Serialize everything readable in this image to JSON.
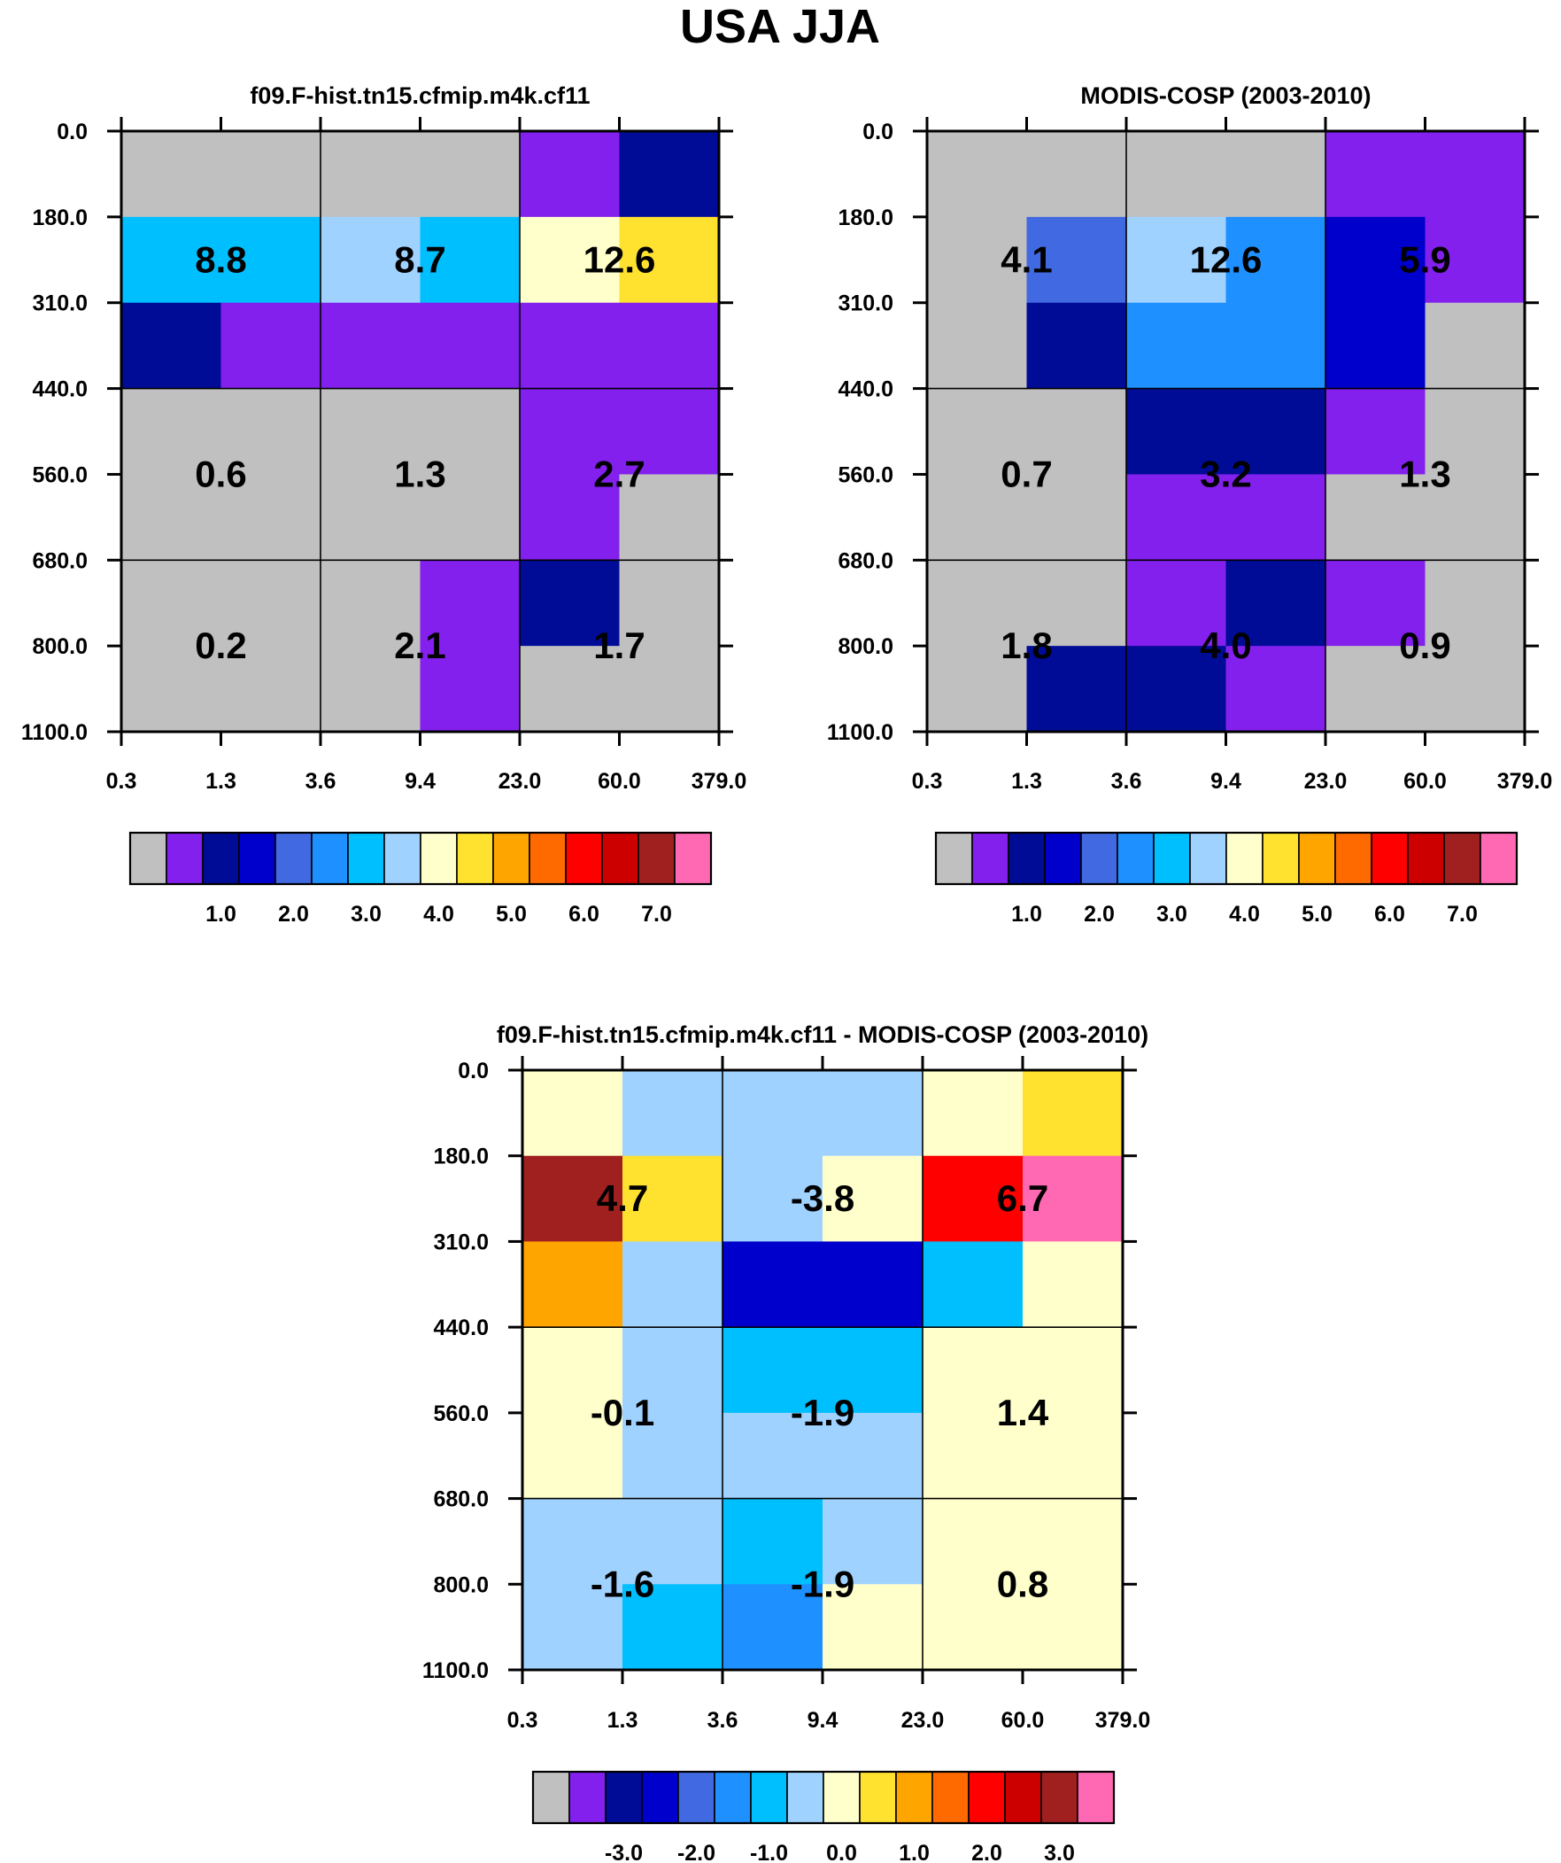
{
  "figure": {
    "title": "USA JJA"
  },
  "chart_data": [
    {
      "type": "heatmap",
      "title": "f09.F-hist.tn15.cfmip.m4k.cf11",
      "x_ticks": [
        "0.3",
        "1.3",
        "3.6",
        "9.4",
        "23.0",
        "60.0",
        "379.0"
      ],
      "y_ticks": [
        "0.0",
        "180.0",
        "310.0",
        "440.0",
        "560.0",
        "680.0",
        "800.0",
        "1100.0"
      ],
      "cells": [
        [
          "gray",
          "gray",
          "gray",
          "gray",
          "c01",
          "c02"
        ],
        [
          "c06",
          "c06",
          "c07",
          "c06",
          "c08",
          "c09"
        ],
        [
          "c02",
          "c01",
          "c01",
          "c01",
          "c01",
          "c01"
        ],
        [
          "gray",
          "gray",
          "gray",
          "gray",
          "c01",
          "c01"
        ],
        [
          "gray",
          "gray",
          "gray",
          "gray",
          "c01",
          "gray"
        ],
        [
          "gray",
          "gray",
          "gray",
          "c01",
          "c02",
          "gray"
        ],
        [
          "gray",
          "gray",
          "gray",
          "c01",
          "gray",
          "gray"
        ]
      ],
      "box_labels": [
        [
          "8.8",
          "8.7",
          "12.6"
        ],
        [
          "0.6",
          "1.3",
          "2.7"
        ],
        [
          "0.2",
          "2.1",
          "1.7"
        ]
      ],
      "colorbar": {
        "colors": [
          "#c0c0c0",
          "#8320ed",
          "#000c96",
          "#0000cd",
          "#4169e1",
          "#1e90ff",
          "#00bfff",
          "#a0d2ff",
          "#ffffcc",
          "#ffe130",
          "#ffa500",
          "#ff6a00",
          "#ff0000",
          "#cd0000",
          "#a02020",
          "#ff69b4"
        ],
        "tick_labels": [
          "1.0",
          "2.0",
          "3.0",
          "4.0",
          "5.0",
          "6.0",
          "7.0"
        ],
        "tick_boundaries": [
          2,
          4,
          6,
          8,
          10,
          12,
          14
        ]
      }
    },
    {
      "type": "heatmap",
      "title": "MODIS-COSP (2003-2010)",
      "x_ticks": [
        "0.3",
        "1.3",
        "3.6",
        "9.4",
        "23.0",
        "60.0",
        "379.0"
      ],
      "y_ticks": [
        "0.0",
        "180.0",
        "310.0",
        "440.0",
        "560.0",
        "680.0",
        "800.0",
        "1100.0"
      ],
      "cells": [
        [
          "gray",
          "gray",
          "gray",
          "gray",
          "c01",
          "c01"
        ],
        [
          "gray",
          "c04",
          "c07",
          "c05",
          "c03",
          "c01"
        ],
        [
          "gray",
          "c02",
          "c05",
          "c05",
          "c03",
          "gray"
        ],
        [
          "gray",
          "gray",
          "c02",
          "c02",
          "c01",
          "gray"
        ],
        [
          "gray",
          "gray",
          "c01",
          "c01",
          "gray",
          "gray"
        ],
        [
          "gray",
          "gray",
          "c01",
          "c02",
          "c01",
          "gray"
        ],
        [
          "gray",
          "c02",
          "c02",
          "c01",
          "gray",
          "gray"
        ]
      ],
      "box_labels": [
        [
          "4.1",
          "12.6",
          "5.9"
        ],
        [
          "0.7",
          "3.2",
          "1.3"
        ],
        [
          "1.8",
          "4.0",
          "0.9"
        ]
      ],
      "colorbar": {
        "colors": [
          "#c0c0c0",
          "#8320ed",
          "#000c96",
          "#0000cd",
          "#4169e1",
          "#1e90ff",
          "#00bfff",
          "#a0d2ff",
          "#ffffcc",
          "#ffe130",
          "#ffa500",
          "#ff6a00",
          "#ff0000",
          "#cd0000",
          "#a02020",
          "#ff69b4"
        ],
        "tick_labels": [
          "1.0",
          "2.0",
          "3.0",
          "4.0",
          "5.0",
          "6.0",
          "7.0"
        ],
        "tick_boundaries": [
          2,
          4,
          6,
          8,
          10,
          12,
          14
        ]
      }
    },
    {
      "type": "heatmap",
      "title": "f09.F-hist.tn15.cfmip.m4k.cf11 - MODIS-COSP (2003-2010)",
      "x_ticks": [
        "0.3",
        "1.3",
        "3.6",
        "9.4",
        "23.0",
        "60.0",
        "379.0"
      ],
      "y_ticks": [
        "0.0",
        "180.0",
        "310.0",
        "440.0",
        "560.0",
        "680.0",
        "800.0",
        "1100.0"
      ],
      "cells": [
        [
          "c08",
          "c07",
          "c07",
          "c07",
          "c08",
          "c09"
        ],
        [
          "c14",
          "c09",
          "c07",
          "c08",
          "c12",
          "c15"
        ],
        [
          "c10",
          "c07",
          "c03",
          "c03",
          "c06",
          "c08"
        ],
        [
          "c08",
          "c07",
          "c06",
          "c06",
          "c08",
          "c08"
        ],
        [
          "c08",
          "c07",
          "c07",
          "c07",
          "c08",
          "c08"
        ],
        [
          "c07",
          "c07",
          "c06",
          "c07",
          "c08",
          "c08"
        ],
        [
          "c07",
          "c06",
          "c05",
          "c08",
          "c08",
          "c08"
        ]
      ],
      "box_labels": [
        [
          "4.7",
          "-3.8",
          "6.7"
        ],
        [
          "-0.1",
          "-1.9",
          "1.4"
        ],
        [
          "-1.6",
          "-1.9",
          "0.8"
        ]
      ],
      "colorbar": {
        "colors": [
          "#c0c0c0",
          "#8320ed",
          "#000c96",
          "#0000cd",
          "#4169e1",
          "#1e90ff",
          "#00bfff",
          "#a0d2ff",
          "#ffffcc",
          "#ffe130",
          "#ffa500",
          "#ff6a00",
          "#ff0000",
          "#cd0000",
          "#a02020",
          "#ff69b4"
        ],
        "tick_labels": [
          "-3.0",
          "-2.0",
          "-1.0",
          "0.0",
          "1.0",
          "2.0",
          "3.0"
        ],
        "tick_boundaries": [
          2,
          4,
          6,
          8,
          10,
          12,
          14
        ]
      }
    }
  ],
  "palette": {
    "gray": "#c0c0c0",
    "c01": "#8320ed",
    "c02": "#000c96",
    "c03": "#0000cd",
    "c04": "#4169e1",
    "c05": "#1e90ff",
    "c06": "#00bfff",
    "c07": "#a0d2ff",
    "c08": "#ffffcc",
    "c09": "#ffe130",
    "c10": "#ffa500",
    "c11": "#ff6a00",
    "c12": "#ff0000",
    "c13": "#cd0000",
    "c14": "#a02020",
    "c15": "#ff69b4"
  }
}
